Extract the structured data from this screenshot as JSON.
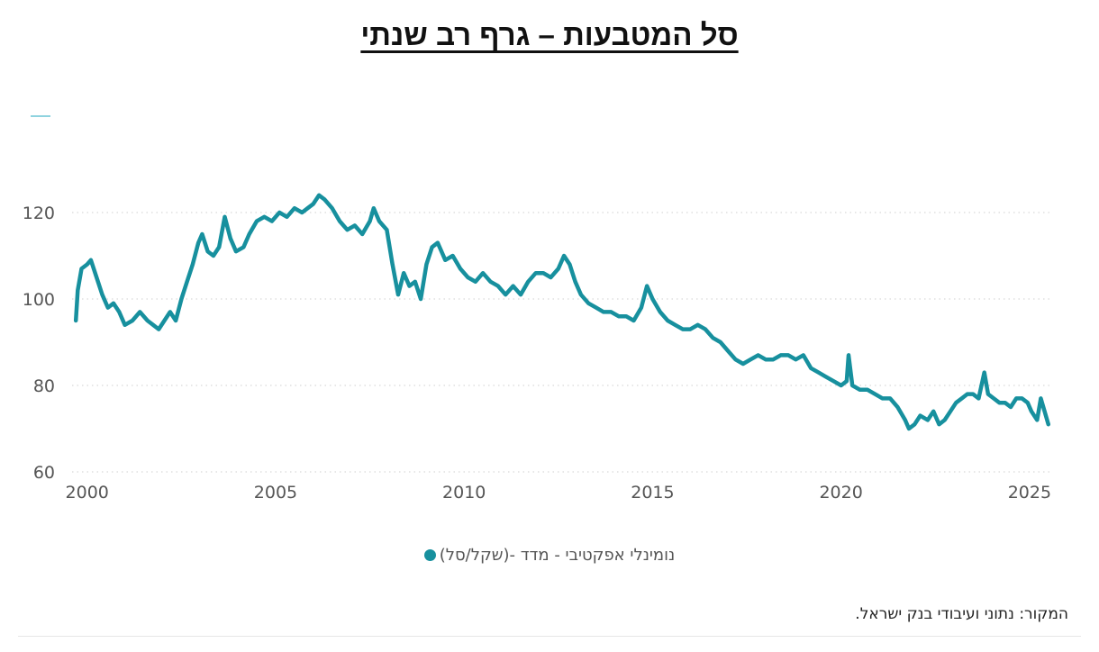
{
  "title": "סל המטבעות – גרף רב שנתי",
  "source": "המקור: נתוני ועיבודי בנק ישראל.",
  "colors": {
    "series": "#17909e",
    "grid": "#cfcfcf",
    "marker": "#8fd3df"
  },
  "chart_data": {
    "type": "line",
    "title": "סל המטבעות – גרף רב שנתי",
    "xlabel": "",
    "ylabel": "",
    "xlim": [
      1999.6,
      2025.6
    ],
    "ylim": [
      60,
      140
    ],
    "x_ticks": [
      2000,
      2005,
      2010,
      2015,
      2020,
      2025
    ],
    "y_ticks": [
      60,
      80,
      100,
      120
    ],
    "grid": "horizontal-dotted",
    "legend_position": "bottom-center",
    "series": [
      {
        "name": "נומינלי אפקטיבי - מדד -(שקל/סל)",
        "color": "#17909e",
        "x": [
          1999.7,
          1999.75,
          1999.85,
          2000.0,
          2000.1,
          2000.25,
          2000.4,
          2000.55,
          2000.7,
          2000.85,
          2001.0,
          2001.2,
          2001.4,
          2001.6,
          2001.75,
          2001.9,
          2002.05,
          2002.2,
          2002.35,
          2002.5,
          2002.65,
          2002.8,
          2002.95,
          2003.05,
          2003.2,
          2003.35,
          2003.5,
          2003.65,
          2003.8,
          2003.95,
          2004.15,
          2004.3,
          2004.5,
          2004.7,
          2004.9,
          2005.1,
          2005.3,
          2005.5,
          2005.7,
          2005.85,
          2006.0,
          2006.15,
          2006.3,
          2006.5,
          2006.7,
          2006.9,
          2007.1,
          2007.3,
          2007.5,
          2007.6,
          2007.75,
          2007.95,
          2008.1,
          2008.25,
          2008.4,
          2008.55,
          2008.7,
          2008.85,
          2009.0,
          2009.15,
          2009.3,
          2009.5,
          2009.7,
          2009.9,
          2010.1,
          2010.3,
          2010.5,
          2010.7,
          2010.9,
          2011.1,
          2011.3,
          2011.5,
          2011.7,
          2011.9,
          2012.1,
          2012.3,
          2012.5,
          2012.65,
          2012.8,
          2012.95,
          2013.1,
          2013.3,
          2013.5,
          2013.7,
          2013.9,
          2014.1,
          2014.3,
          2014.5,
          2014.7,
          2014.85,
          2015.0,
          2015.2,
          2015.4,
          2015.6,
          2015.8,
          2016.0,
          2016.2,
          2016.4,
          2016.6,
          2016.8,
          2017.0,
          2017.2,
          2017.4,
          2017.6,
          2017.8,
          2018.0,
          2018.2,
          2018.4,
          2018.6,
          2018.8,
          2019.0,
          2019.2,
          2019.4,
          2019.6,
          2019.8,
          2020.0,
          2020.15,
          2020.2,
          2020.3,
          2020.5,
          2020.7,
          2020.9,
          2021.1,
          2021.3,
          2021.5,
          2021.7,
          2021.8,
          2021.95,
          2022.1,
          2022.3,
          2022.45,
          2022.6,
          2022.75,
          2022.9,
          2023.05,
          2023.2,
          2023.35,
          2023.5,
          2023.65,
          2023.8,
          2023.9,
          2024.05,
          2024.2,
          2024.35,
          2024.5,
          2024.65,
          2024.8,
          2024.95,
          2025.05,
          2025.2,
          2025.3,
          2025.4,
          2025.5
        ],
        "values": [
          95,
          102,
          107,
          108,
          109,
          105,
          101,
          98,
          99,
          97,
          94,
          95,
          97,
          95,
          94,
          93,
          95,
          97,
          95,
          100,
          104,
          108,
          113,
          115,
          111,
          110,
          112,
          119,
          114,
          111,
          112,
          115,
          118,
          119,
          118,
          120,
          119,
          121,
          120,
          121,
          122,
          124,
          123,
          121,
          118,
          116,
          117,
          115,
          118,
          121,
          118,
          116,
          108,
          101,
          106,
          103,
          104,
          100,
          108,
          112,
          113,
          109,
          110,
          107,
          105,
          104,
          106,
          104,
          103,
          101,
          103,
          101,
          104,
          106,
          106,
          105,
          107,
          110,
          108,
          104,
          101,
          99,
          98,
          97,
          97,
          96,
          96,
          95,
          98,
          103,
          100,
          97,
          95,
          94,
          93,
          93,
          94,
          93,
          91,
          90,
          88,
          86,
          85,
          86,
          87,
          86,
          86,
          87,
          87,
          86,
          87,
          84,
          83,
          82,
          81,
          80,
          81,
          87,
          80,
          79,
          79,
          78,
          77,
          77,
          75,
          72,
          70,
          71,
          73,
          72,
          74,
          71,
          72,
          74,
          76,
          77,
          78,
          78,
          77,
          83,
          78,
          77,
          76,
          76,
          75,
          77,
          77,
          76,
          74,
          72,
          77,
          74,
          71
        ]
      }
    ]
  }
}
